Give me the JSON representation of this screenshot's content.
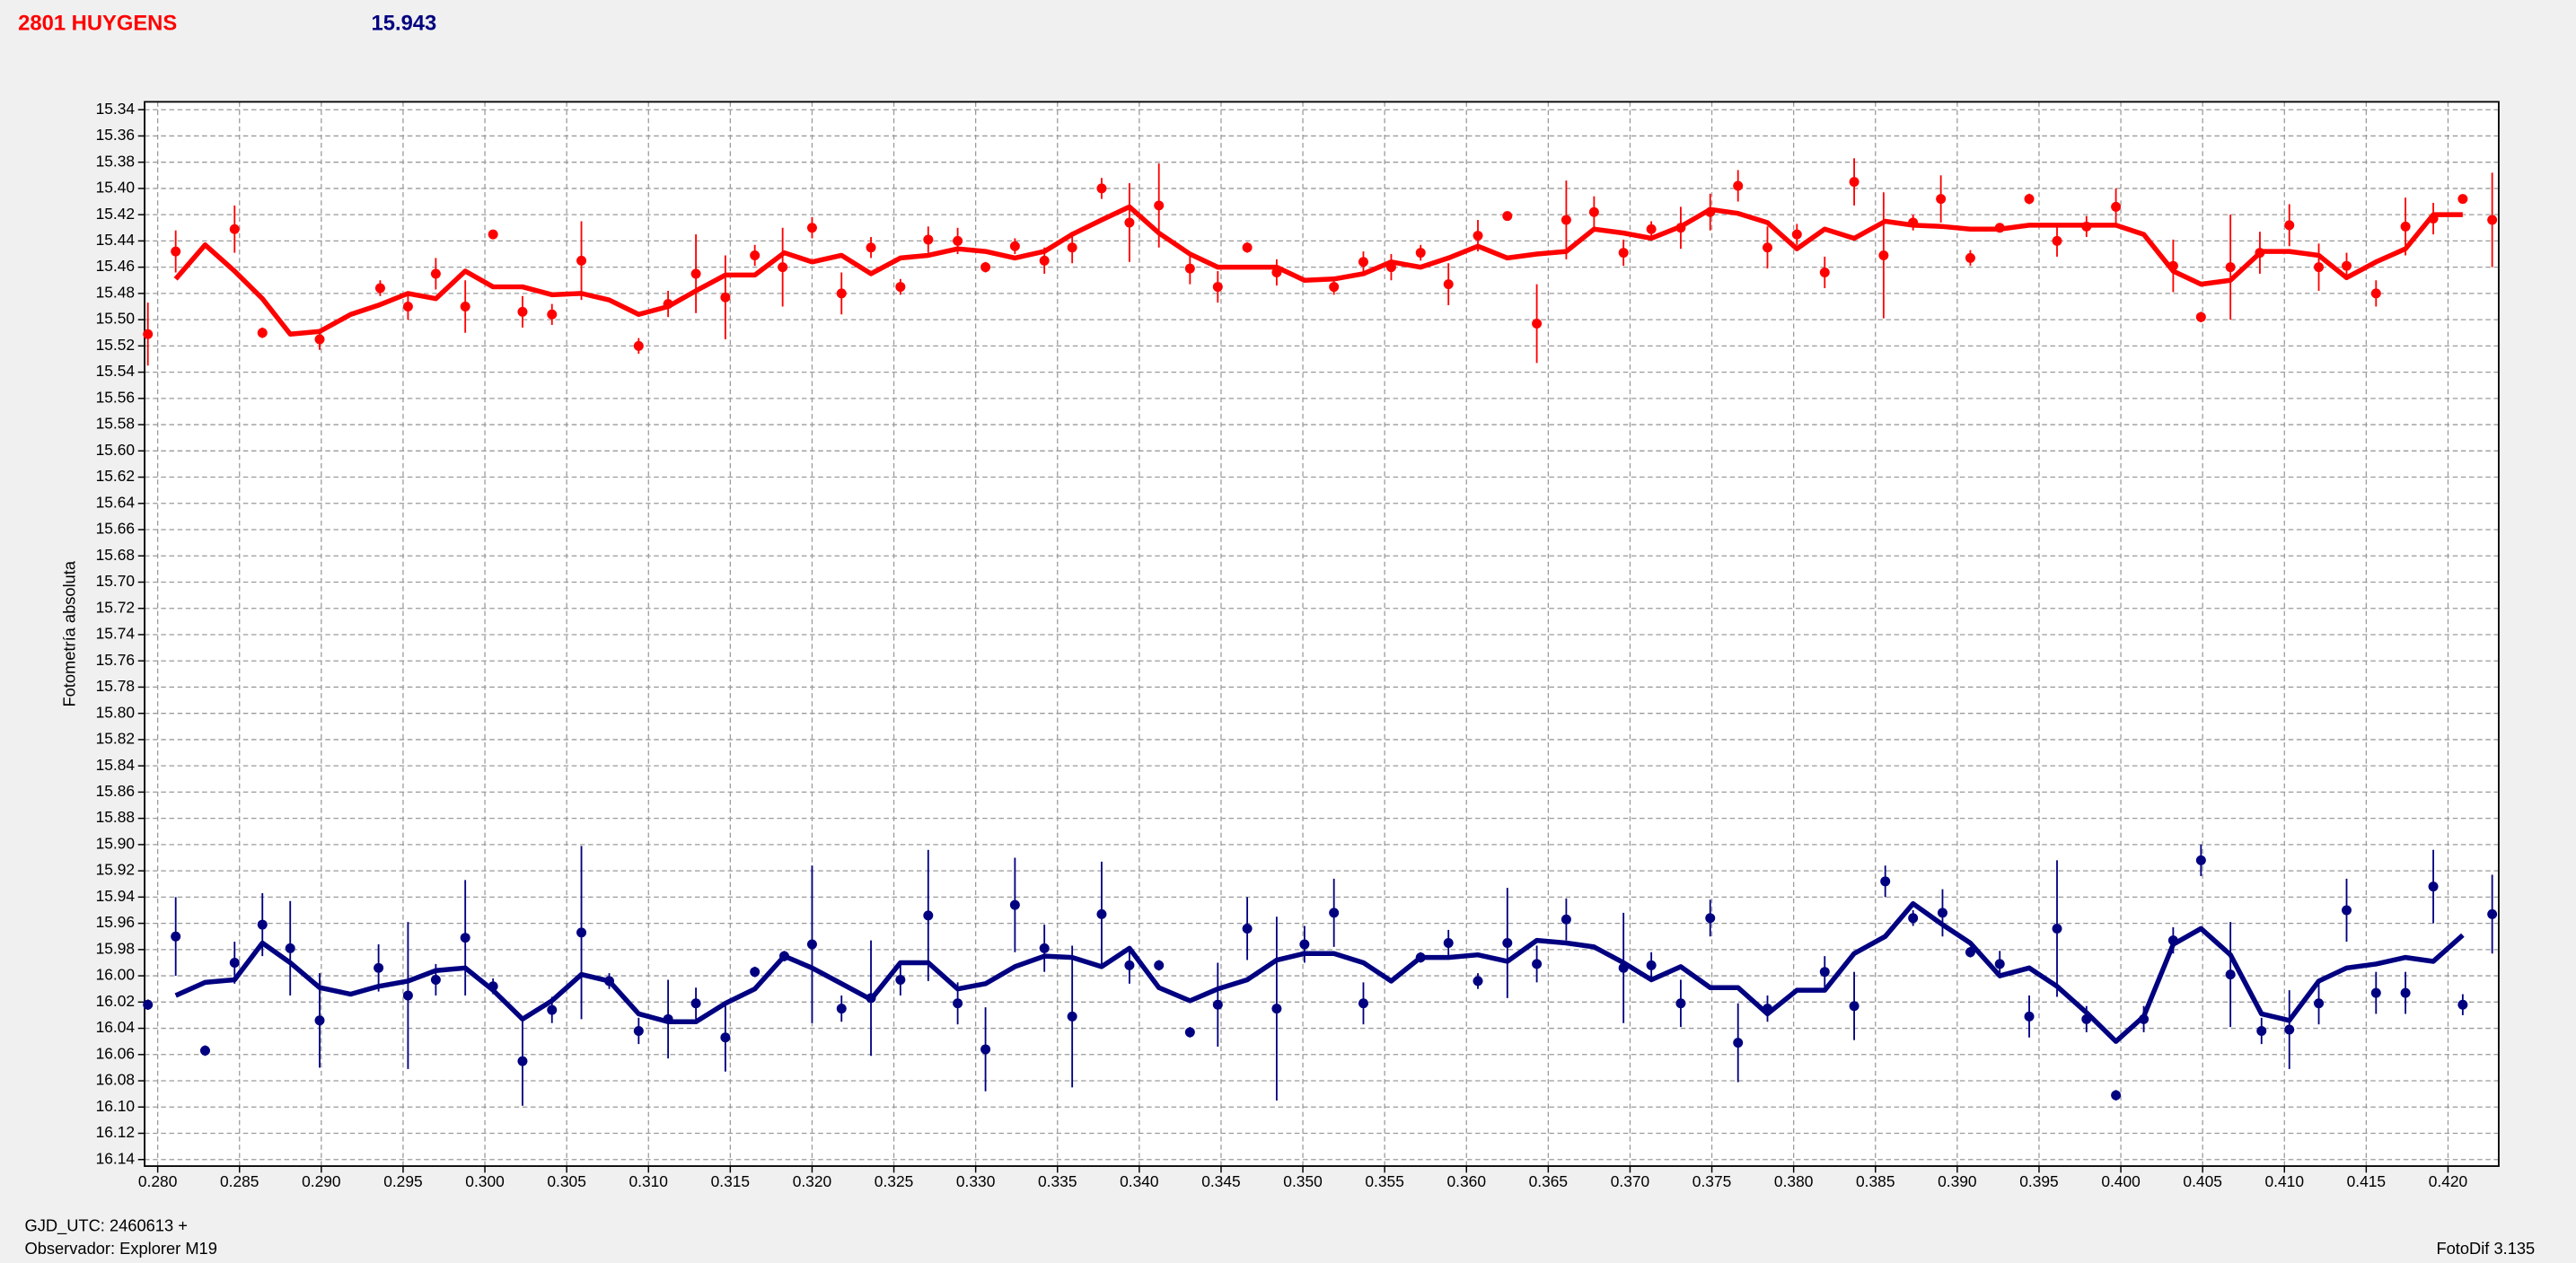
{
  "title": "2801 HUYGENS",
  "subtitle": "15.943",
  "footer_left_1": "GJD_UTC: 2460613 +",
  "footer_left_2": "Observador: Explorer M19",
  "footer_right": "FotoDif 3.135",
  "chart_data": {
    "type": "errorbar_line",
    "y_label": "Fotometría absoluta",
    "xlim": [
      0.2792,
      0.4231
    ],
    "ylim": [
      15.334,
      16.145
    ],
    "y_inverted": true,
    "grid": true,
    "xticks": [
      {
        "value": 0.28,
        "label": "0.280"
      },
      0.285,
      {
        "value": 0.29,
        "label": "0.290"
      },
      0.295,
      {
        "value": 0.3,
        "label": "0.300"
      },
      0.305,
      {
        "value": 0.31,
        "label": "0.310"
      },
      0.315,
      {
        "value": 0.32,
        "label": "0.320"
      },
      0.325,
      {
        "value": 0.33,
        "label": "0.330"
      },
      0.335,
      {
        "value": 0.34,
        "label": "0.340"
      },
      0.345,
      {
        "value": 0.35,
        "label": "0.350"
      },
      0.355,
      {
        "value": 0.36,
        "label": "0.360"
      },
      0.365,
      {
        "value": 0.37,
        "label": "0.370"
      },
      0.375,
      {
        "value": 0.38,
        "label": "0.380"
      },
      0.385,
      {
        "value": 0.39,
        "label": "0.390"
      },
      0.395,
      {
        "value": 0.4,
        "label": "0.400"
      },
      0.405,
      {
        "value": 0.41,
        "label": "0.410"
      },
      0.415,
      {
        "value": 0.42,
        "label": "0.420"
      }
    ],
    "yticks": [
      15.34,
      15.36,
      15.38,
      {
        "value": 15.4,
        "label": "15.40"
      },
      15.42,
      15.44,
      15.46,
      15.48,
      {
        "value": 15.5,
        "label": "15.50"
      },
      15.52,
      15.54,
      15.56,
      15.58,
      {
        "value": 15.6,
        "label": "15.60"
      },
      15.62,
      15.64,
      15.66,
      15.68,
      {
        "value": 15.7,
        "label": "15.70"
      },
      15.72,
      15.74,
      15.76,
      15.78,
      {
        "value": 15.8,
        "label": "15.80"
      },
      15.82,
      15.84,
      15.86,
      15.88,
      {
        "value": 15.9,
        "label": "15.90"
      },
      15.92,
      15.94,
      15.96,
      15.98,
      {
        "value": 16.0,
        "label": "16.00"
      },
      16.02,
      16.04,
      16.06,
      16.08,
      {
        "value": 16.1,
        "label": "16.10"
      },
      16.12,
      16.14
    ],
    "series": [
      {
        "color": "#ff0000",
        "x": [
          0.2794,
          0.2811,
          0.2847,
          0.2864,
          0.2899,
          0.2936,
          0.2953,
          0.297,
          0.2988,
          0.3005,
          0.3023,
          0.3041,
          0.3059,
          0.3094,
          0.3112,
          0.3129,
          0.3147,
          0.3165,
          0.3182,
          0.32,
          0.3218,
          0.3236,
          0.3254,
          0.3271,
          0.3289,
          0.3306,
          0.3324,
          0.3342,
          0.3359,
          0.3377,
          0.3394,
          0.3412,
          0.3431,
          0.3448,
          0.3466,
          0.3484,
          0.3519,
          0.3537,
          0.3554,
          0.3572,
          0.3589,
          0.3607,
          0.3625,
          0.3643,
          0.3661,
          0.3678,
          0.3696,
          0.3713,
          0.3731,
          0.3749,
          0.3766,
          0.3784,
          0.3802,
          0.3819,
          0.3837,
          0.3855,
          0.3873,
          0.389,
          0.3908,
          0.3926,
          0.3944,
          0.3961,
          0.3979,
          0.3997,
          0.4032,
          0.4049,
          0.4067,
          0.4085,
          0.4103,
          0.4121,
          0.4138,
          0.4156,
          0.4174,
          0.4191,
          0.4209,
          0.4227
        ],
        "values": [
          15.511,
          15.448,
          15.431,
          15.51,
          15.515,
          15.476,
          15.49,
          15.465,
          15.49,
          15.435,
          15.494,
          15.496,
          15.455,
          15.52,
          15.488,
          15.465,
          15.483,
          15.451,
          15.46,
          15.43,
          15.48,
          15.445,
          15.475,
          15.439,
          15.44,
          15.46,
          15.444,
          15.455,
          15.445,
          15.4,
          15.426,
          15.413,
          15.461,
          15.475,
          15.445,
          15.464,
          15.475,
          15.456,
          15.46,
          15.449,
          15.473,
          15.436,
          15.421,
          15.503,
          15.424,
          15.418,
          15.449,
          15.431,
          15.43,
          15.418,
          15.398,
          15.445,
          15.435,
          15.464,
          15.395,
          15.451,
          15.426,
          15.408,
          15.453,
          15.43,
          15.408,
          15.44,
          15.429,
          15.414,
          15.459,
          15.498,
          15.46,
          15.449,
          15.428,
          15.46,
          15.459,
          15.48,
          15.429,
          15.423,
          15.408,
          15.424
        ],
        "errors": [
          0.024,
          0.016,
          0.018,
          0.004,
          0.008,
          0.006,
          0.01,
          0.012,
          0.02,
          0.003,
          0.012,
          0.008,
          0.03,
          0.006,
          0.01,
          0.03,
          0.032,
          0.008,
          0.03,
          0.008,
          0.016,
          0.008,
          0.006,
          0.01,
          0.01,
          0.004,
          0.006,
          0.01,
          0.012,
          0.008,
          0.03,
          0.032,
          0.012,
          0.012,
          0.004,
          0.01,
          0.006,
          0.008,
          0.01,
          0.006,
          0.016,
          0.012,
          0.003,
          0.03,
          0.03,
          0.012,
          0.01,
          0.006,
          0.016,
          0.014,
          0.012,
          0.016,
          0.008,
          0.012,
          0.018,
          0.048,
          0.006,
          0.018,
          0.006,
          0.003,
          0.004,
          0.012,
          0.008,
          0.014,
          0.02,
          0.004,
          0.04,
          0.016,
          0.016,
          0.018,
          0.01,
          0.01,
          0.022,
          0.012,
          0.003,
          0.036
        ],
        "line_x": [
          0.2811,
          0.2829,
          0.2847,
          0.2864,
          0.2881,
          0.2899,
          0.2918,
          0.2935,
          0.2953,
          0.297,
          0.2988,
          0.3005,
          0.3023,
          0.3041,
          0.3059,
          0.3076,
          0.3094,
          0.3112,
          0.3129,
          0.3147,
          0.3165,
          0.3183,
          0.32,
          0.3218,
          0.3236,
          0.3254,
          0.3271,
          0.3289,
          0.3306,
          0.3324,
          0.3342,
          0.3359,
          0.3377,
          0.3394,
          0.3412,
          0.3431,
          0.3448,
          0.3466,
          0.3484,
          0.3501,
          0.3519,
          0.3537,
          0.3554,
          0.3572,
          0.3589,
          0.3607,
          0.3625,
          0.3643,
          0.3661,
          0.3678,
          0.3696,
          0.3713,
          0.3731,
          0.3749,
          0.3766,
          0.3784,
          0.3802,
          0.3819,
          0.3837,
          0.3856,
          0.3873,
          0.3891,
          0.3908,
          0.3926,
          0.3944,
          0.3961,
          0.3979,
          0.3997,
          0.4014,
          0.4032,
          0.4049,
          0.4067,
          0.4086,
          0.4103,
          0.4121,
          0.4138,
          0.4156,
          0.4174,
          0.4191,
          0.4209
        ],
        "line_values": [
          15.469,
          15.443,
          15.463,
          15.484,
          15.511,
          15.509,
          15.496,
          15.489,
          15.48,
          15.484,
          15.463,
          15.475,
          15.475,
          15.481,
          15.48,
          15.485,
          15.496,
          15.49,
          15.478,
          15.466,
          15.466,
          15.449,
          15.456,
          15.451,
          15.465,
          15.453,
          15.451,
          15.446,
          15.448,
          15.453,
          15.448,
          15.435,
          15.424,
          15.414,
          15.434,
          15.45,
          15.46,
          15.46,
          15.46,
          15.47,
          15.469,
          15.465,
          15.456,
          15.46,
          15.453,
          15.444,
          15.453,
          15.45,
          15.448,
          15.431,
          15.434,
          15.438,
          15.429,
          15.416,
          15.419,
          15.426,
          15.446,
          15.431,
          15.438,
          15.425,
          15.428,
          15.429,
          15.431,
          15.431,
          15.428,
          15.428,
          15.428,
          15.428,
          15.435,
          15.463,
          15.473,
          15.47,
          15.448,
          15.448,
          15.451,
          15.468,
          15.456,
          15.446,
          15.42,
          15.42
        ]
      },
      {
        "color": "#000080",
        "x": [
          0.2794,
          0.2811,
          0.2829,
          0.2847,
          0.2864,
          0.2881,
          0.2899,
          0.2935,
          0.2953,
          0.297,
          0.2988,
          0.3005,
          0.3023,
          0.3041,
          0.3059,
          0.3076,
          0.3094,
          0.3112,
          0.3129,
          0.3147,
          0.3165,
          0.3183,
          0.32,
          0.3218,
          0.3236,
          0.3254,
          0.3271,
          0.3289,
          0.3306,
          0.3324,
          0.3342,
          0.3359,
          0.3377,
          0.3394,
          0.3412,
          0.3431,
          0.3448,
          0.3466,
          0.3484,
          0.3501,
          0.3519,
          0.3537,
          0.3572,
          0.3589,
          0.3607,
          0.3625,
          0.3643,
          0.3661,
          0.3696,
          0.3713,
          0.3731,
          0.3749,
          0.3766,
          0.3784,
          0.3819,
          0.3837,
          0.3856,
          0.3873,
          0.3891,
          0.3908,
          0.3926,
          0.3944,
          0.3961,
          0.3979,
          0.3997,
          0.4014,
          0.4032,
          0.4049,
          0.4067,
          0.4086,
          0.4103,
          0.4121,
          0.4138,
          0.4156,
          0.4174,
          0.4191,
          0.4209,
          0.4227
        ],
        "values": [
          16.022,
          15.97,
          16.057,
          15.99,
          15.961,
          15.979,
          16.034,
          15.994,
          16.015,
          16.003,
          15.971,
          16.008,
          16.065,
          16.026,
          15.967,
          16.004,
          16.042,
          16.033,
          16.021,
          16.047,
          15.997,
          15.985,
          15.976,
          16.025,
          16.017,
          16.003,
          15.954,
          16.021,
          16.056,
          15.946,
          15.979,
          16.031,
          15.953,
          15.992,
          15.992,
          16.043,
          16.022,
          15.964,
          16.025,
          15.976,
          15.952,
          16.021,
          15.986,
          15.975,
          16.004,
          15.975,
          15.991,
          15.957,
          15.994,
          15.992,
          16.021,
          15.956,
          16.051,
          16.025,
          15.997,
          16.023,
          15.928,
          15.956,
          15.952,
          15.982,
          15.991,
          16.031,
          15.964,
          16.033,
          16.091,
          16.033,
          15.973,
          15.912,
          15.999,
          16.042,
          16.041,
          16.021,
          15.95,
          16.013,
          16.013,
          15.932,
          16.022,
          15.953
        ],
        "errors": [
          0.004,
          0.03,
          0.004,
          0.016,
          0.024,
          0.036,
          0.036,
          0.018,
          0.056,
          0.012,
          0.044,
          0.006,
          0.034,
          0.01,
          0.066,
          0.006,
          0.01,
          0.03,
          0.012,
          0.026,
          0.004,
          0.004,
          0.06,
          0.01,
          0.044,
          0.012,
          0.05,
          0.016,
          0.032,
          0.036,
          0.018,
          0.054,
          0.04,
          0.014,
          0.004,
          0.004,
          0.032,
          0.024,
          0.07,
          0.014,
          0.026,
          0.016,
          0.004,
          0.01,
          0.006,
          0.042,
          0.014,
          0.016,
          0.042,
          0.01,
          0.018,
          0.014,
          0.03,
          0.01,
          0.012,
          0.026,
          0.012,
          0.006,
          0.018,
          0.004,
          0.01,
          0.016,
          0.052,
          0.01,
          0.004,
          0.01,
          0.01,
          0.012,
          0.04,
          0.01,
          0.03,
          0.016,
          0.024,
          0.016,
          0.016,
          0.028,
          0.008,
          0.03
        ],
        "line_x": [
          0.2811,
          0.2829,
          0.2847,
          0.2864,
          0.2881,
          0.2899,
          0.2918,
          0.2935,
          0.2953,
          0.297,
          0.2988,
          0.3005,
          0.3023,
          0.3041,
          0.3059,
          0.3076,
          0.3094,
          0.3112,
          0.3129,
          0.3147,
          0.3165,
          0.3183,
          0.32,
          0.3218,
          0.3236,
          0.3254,
          0.3271,
          0.3289,
          0.3306,
          0.3324,
          0.3342,
          0.3359,
          0.3377,
          0.3394,
          0.3412,
          0.3431,
          0.3448,
          0.3466,
          0.3484,
          0.3501,
          0.3519,
          0.3537,
          0.3554,
          0.3572,
          0.3589,
          0.3607,
          0.3625,
          0.3643,
          0.3661,
          0.3678,
          0.3696,
          0.3713,
          0.3731,
          0.3749,
          0.3766,
          0.3784,
          0.3802,
          0.3819,
          0.3837,
          0.3856,
          0.3873,
          0.3891,
          0.3908,
          0.3926,
          0.3944,
          0.3961,
          0.3979,
          0.3997,
          0.4014,
          0.4032,
          0.4049,
          0.4067,
          0.4086,
          0.4103,
          0.4121,
          0.4138,
          0.4156,
          0.4174,
          0.4191,
          0.4209
        ],
        "line_values": [
          16.015,
          16.005,
          16.003,
          15.975,
          15.99,
          16.009,
          16.014,
          16.008,
          16.004,
          15.996,
          15.994,
          16.011,
          16.033,
          16.019,
          15.999,
          16.004,
          16.029,
          16.035,
          16.035,
          16.021,
          16.01,
          15.985,
          15.994,
          16.006,
          16.018,
          15.99,
          15.99,
          16.01,
          16.006,
          15.993,
          15.985,
          15.986,
          15.993,
          15.979,
          16.009,
          16.019,
          16.01,
          16.003,
          15.988,
          15.983,
          15.983,
          15.99,
          16.004,
          15.986,
          15.986,
          15.984,
          15.989,
          15.973,
          15.975,
          15.978,
          15.99,
          16.003,
          15.993,
          16.009,
          16.009,
          16.029,
          16.011,
          16.011,
          15.983,
          15.97,
          15.945,
          15.961,
          15.975,
          16.0,
          15.994,
          16.008,
          16.028,
          16.05,
          16.031,
          15.976,
          15.964,
          15.984,
          16.029,
          16.034,
          16.004,
          15.994,
          15.991,
          15.986,
          15.989,
          15.969
        ]
      }
    ]
  }
}
